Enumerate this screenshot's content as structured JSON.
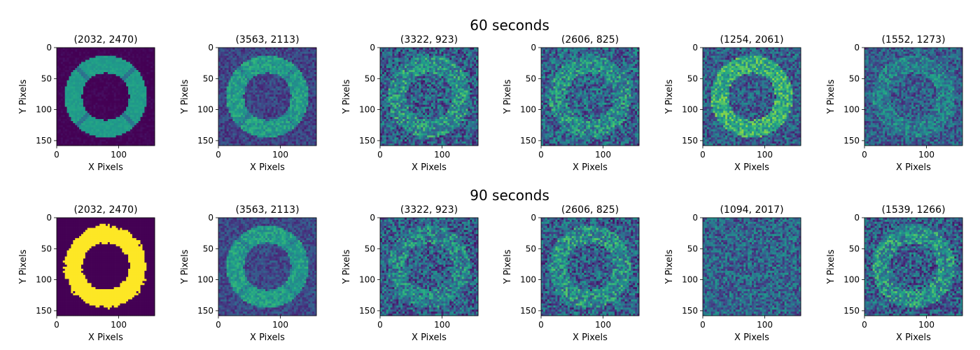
{
  "chart_data": {
    "type": "heatmap",
    "colormap": "viridis",
    "grid": false,
    "xlabel": "X Pixels",
    "ylabel": "Y Pixels",
    "xlim": [
      0,
      158
    ],
    "ylim": [
      158,
      0
    ],
    "xticks": [
      0,
      100
    ],
    "yticks": [
      0,
      50,
      100,
      150
    ],
    "rows": [
      {
        "title": "60 seconds",
        "panels": [
          {
            "title": "(2032, 2470)",
            "style": "clean",
            "ring": 0.55,
            "bg": 0.0,
            "noise": 0.04,
            "spokes": true,
            "saturated": false
          },
          {
            "title": "(3563, 2113)",
            "style": "medium",
            "ring": 0.55,
            "bg": 0.2,
            "noise": 0.12,
            "spokes": true,
            "saturated": false
          },
          {
            "title": "(3322, 923)",
            "style": "noisy",
            "ring": 0.5,
            "bg": 0.3,
            "noise": 0.25,
            "spokes": false,
            "saturated": false
          },
          {
            "title": "(2606, 825)",
            "style": "noisy",
            "ring": 0.48,
            "bg": 0.32,
            "noise": 0.25,
            "spokes": false,
            "saturated": false
          },
          {
            "title": "(1254, 2061)",
            "style": "noisy",
            "ring": 0.62,
            "bg": 0.3,
            "noise": 0.22,
            "spokes": false,
            "saturated": false
          },
          {
            "title": "(1552, 1273)",
            "style": "noisy",
            "ring": 0.42,
            "bg": 0.3,
            "noise": 0.2,
            "spokes": false,
            "saturated": false
          }
        ]
      },
      {
        "title": "90 seconds",
        "panels": [
          {
            "title": "(2032, 2470)",
            "style": "saturated",
            "ring": 1.0,
            "bg": 0.0,
            "noise": 0.0,
            "spokes": false,
            "saturated": true
          },
          {
            "title": "(3563, 2113)",
            "style": "medium",
            "ring": 0.55,
            "bg": 0.22,
            "noise": 0.12,
            "spokes": true,
            "saturated": false
          },
          {
            "title": "(3322, 923)",
            "style": "noisy",
            "ring": 0.45,
            "bg": 0.3,
            "noise": 0.25,
            "spokes": false,
            "saturated": false
          },
          {
            "title": "(2606, 825)",
            "style": "noisy",
            "ring": 0.5,
            "bg": 0.3,
            "noise": 0.25,
            "spokes": false,
            "saturated": false
          },
          {
            "title": "(1094, 2017)",
            "style": "noisy",
            "ring": 0.33,
            "bg": 0.32,
            "noise": 0.22,
            "spokes": false,
            "saturated": false
          },
          {
            "title": "(1539, 1266)",
            "style": "noisy",
            "ring": 0.5,
            "bg": 0.3,
            "noise": 0.25,
            "spokes": false,
            "saturated": false
          }
        ]
      }
    ]
  }
}
